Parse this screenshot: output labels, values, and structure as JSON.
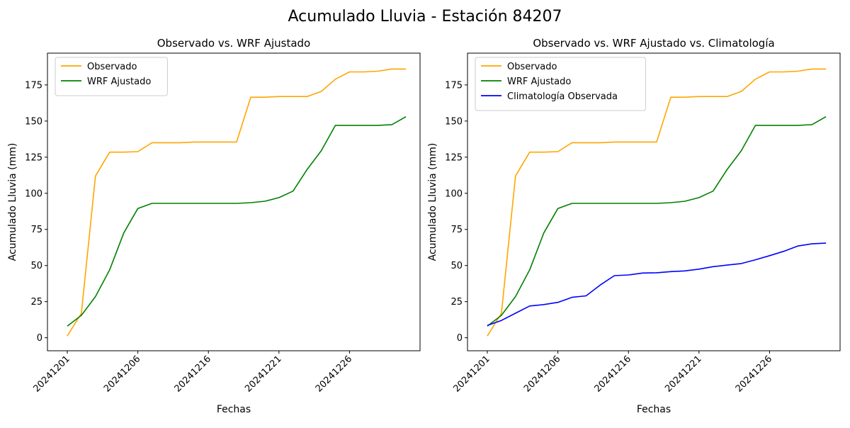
{
  "suptitle": "Acumulado Lluvia - Estación 84207",
  "chart_data": [
    {
      "type": "line",
      "title": "Observado vs. WRF Ajustado",
      "xlabel": "Fechas",
      "ylabel": "Acumulado Lluvia (mm)",
      "xlim": [
        0,
        25
      ],
      "ylim": [
        -9,
        197
      ],
      "xticks": [
        0,
        5,
        10,
        15,
        20
      ],
      "xticklabels": [
        "20241201",
        "20241206",
        "20241216",
        "20241221",
        "20241226"
      ],
      "yticks": [
        0,
        25,
        50,
        75,
        100,
        125,
        150,
        175
      ],
      "legend_position": "upper-left",
      "series": [
        {
          "name": "Observado",
          "color": "#FFA500",
          "x": [
            0,
            1,
            2,
            3,
            4,
            5,
            6,
            7,
            8,
            9,
            10,
            11,
            12,
            13,
            14,
            15,
            16,
            17,
            18,
            19,
            20,
            21,
            22,
            23,
            24
          ],
          "values": [
            1.2,
            17.0,
            112.0,
            128.5,
            128.5,
            128.8,
            135.0,
            135.0,
            135.0,
            135.5,
            135.5,
            135.5,
            135.5,
            166.5,
            166.5,
            167.0,
            167.0,
            167.0,
            170.5,
            179.0,
            184.0,
            184.0,
            184.5,
            186.0,
            186.0
          ]
        },
        {
          "name": "WRF Ajustado",
          "color": "#008000",
          "x": [
            0,
            1,
            2,
            3,
            4,
            5,
            6,
            7,
            8,
            9,
            10,
            11,
            12,
            13,
            14,
            15,
            16,
            17,
            18,
            19,
            20,
            21,
            22,
            23,
            24
          ],
          "values": [
            8.0,
            15.5,
            28.5,
            47.0,
            72.5,
            89.5,
            93.0,
            93.0,
            93.0,
            93.0,
            93.0,
            93.0,
            93.0,
            93.5,
            94.5,
            97.0,
            101.5,
            116.5,
            129.5,
            147.0,
            147.0,
            147.0,
            147.0,
            147.5,
            153.0
          ]
        }
      ]
    },
    {
      "type": "line",
      "title": "Observado vs. WRF Ajustado vs. Climatología",
      "xlabel": "Fechas",
      "ylabel": "Acumulado Lluvia (mm)",
      "xlim": [
        0,
        25
      ],
      "ylim": [
        -9,
        197
      ],
      "xticks": [
        0,
        5,
        10,
        15,
        20
      ],
      "xticklabels": [
        "20241201",
        "20241206",
        "20241216",
        "20241221",
        "20241226"
      ],
      "yticks": [
        0,
        25,
        50,
        75,
        100,
        125,
        150,
        175
      ],
      "legend_position": "upper-left",
      "series": [
        {
          "name": "Observado",
          "color": "#FFA500",
          "x": [
            0,
            1,
            2,
            3,
            4,
            5,
            6,
            7,
            8,
            9,
            10,
            11,
            12,
            13,
            14,
            15,
            16,
            17,
            18,
            19,
            20,
            21,
            22,
            23,
            24
          ],
          "values": [
            1.2,
            17.0,
            112.0,
            128.5,
            128.5,
            128.8,
            135.0,
            135.0,
            135.0,
            135.5,
            135.5,
            135.5,
            135.5,
            166.5,
            166.5,
            167.0,
            167.0,
            167.0,
            170.5,
            179.0,
            184.0,
            184.0,
            184.5,
            186.0,
            186.0
          ]
        },
        {
          "name": "WRF Ajustado",
          "color": "#008000",
          "x": [
            0,
            1,
            2,
            3,
            4,
            5,
            6,
            7,
            8,
            9,
            10,
            11,
            12,
            13,
            14,
            15,
            16,
            17,
            18,
            19,
            20,
            21,
            22,
            23,
            24
          ],
          "values": [
            8.0,
            15.5,
            28.5,
            47.0,
            72.5,
            89.5,
            93.0,
            93.0,
            93.0,
            93.0,
            93.0,
            93.0,
            93.0,
            93.5,
            94.5,
            97.0,
            101.5,
            116.5,
            129.5,
            147.0,
            147.0,
            147.0,
            147.0,
            147.5,
            153.0
          ]
        },
        {
          "name": "Climatología Observada",
          "color": "#0000FF",
          "x": [
            0,
            1,
            2,
            3,
            4,
            5,
            6,
            7,
            8,
            9,
            10,
            11,
            12,
            13,
            14,
            15,
            16,
            17,
            18,
            19,
            20,
            21,
            22,
            23,
            24
          ],
          "values": [
            8.5,
            12.0,
            17.0,
            22.0,
            23.0,
            24.5,
            28.0,
            29.0,
            36.5,
            43.0,
            43.5,
            44.8,
            45.0,
            45.8,
            46.3,
            47.5,
            49.2,
            50.3,
            51.4,
            54.0,
            56.8,
            59.8,
            63.5,
            65.0,
            65.5
          ]
        }
      ]
    }
  ]
}
